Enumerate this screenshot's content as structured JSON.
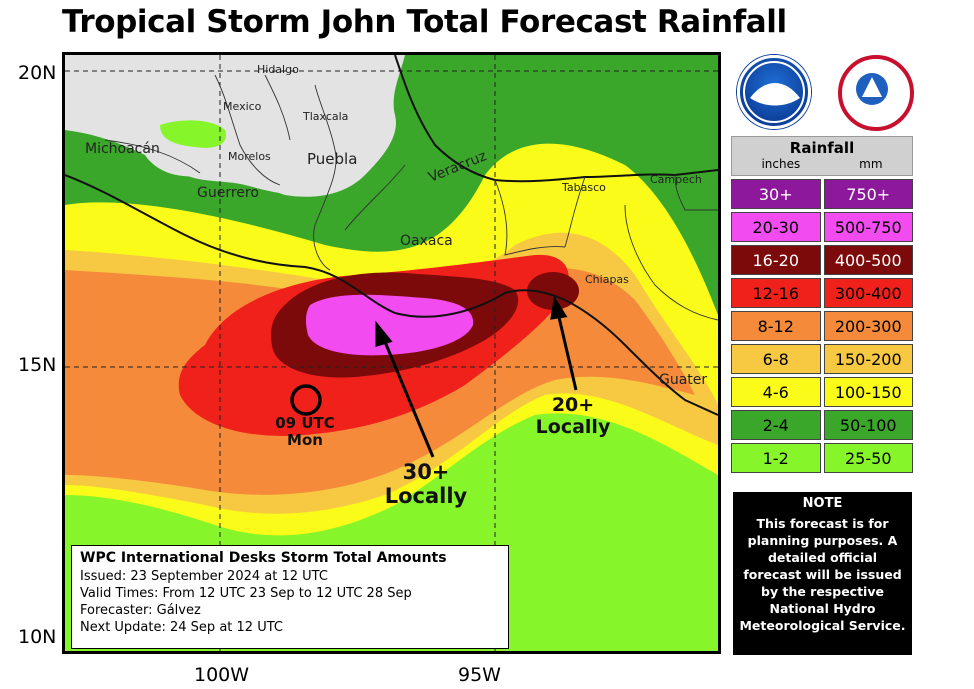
{
  "title": "Tropical Storm John Total Forecast Rainfall",
  "axes": {
    "lat_labels": [
      "20N",
      "15N",
      "10N"
    ],
    "lon_labels": [
      "100W",
      "95W"
    ]
  },
  "places": {
    "hidalgo": "Hidalgo",
    "mexico": "Mexico",
    "tlaxcala": "Tlaxcala",
    "michoacan": "Michoacán",
    "morelos": "Morelos",
    "puebla": "Puebla",
    "veracruz": "Veracruz",
    "guerrero": "Guerrero",
    "tabasco": "Tabasco",
    "campeche": "Campech",
    "oaxaca": "Oaxaca",
    "chiapas": "Chiapas",
    "guatemala": "Guater"
  },
  "annotations": {
    "center": "09 UTC\nMon",
    "max30": "30+\nLocally",
    "max20": "20+\nLocally"
  },
  "info_box": {
    "header": "WPC International Desks Storm Total Amounts",
    "issued": "Issued:  23 September 2024 at 12 UTC",
    "valid": "Valid Times:  From 12 UTC 23 Sep  to  12 UTC 28 Sep",
    "forecaster": "Forecaster: Gálvez",
    "next_update": "Next Update: 24 Sep at 12 UTC"
  },
  "logos": {
    "noaa": "noaa-logo",
    "nws": "nws-logo"
  },
  "legend": {
    "title": "Rainfall",
    "unit_inches": "inches",
    "unit_mm": "mm",
    "rows": [
      {
        "inches": "30+",
        "mm": "750+",
        "color": "#8e189c",
        "text_color": "#ffffff"
      },
      {
        "inches": "20-30",
        "mm": "500-750",
        "color": "#f24cf0",
        "text_color": "#000000"
      },
      {
        "inches": "16-20",
        "mm": "400-500",
        "color": "#7c0a0a",
        "text_color": "#ffffff"
      },
      {
        "inches": "12-16",
        "mm": "300-400",
        "color": "#f0201a",
        "text_color": "#000000"
      },
      {
        "inches": "8-12",
        "mm": "200-300",
        "color": "#f58b3a",
        "text_color": "#000000"
      },
      {
        "inches": "6-8",
        "mm": "150-200",
        "color": "#f7c842",
        "text_color": "#000000"
      },
      {
        "inches": "4-6",
        "mm": "100-150",
        "color": "#fbfb1a",
        "text_color": "#000000"
      },
      {
        "inches": "2-4",
        "mm": "50-100",
        "color": "#3aa62a",
        "text_color": "#000000"
      },
      {
        "inches": "1-2",
        "mm": "25-50",
        "color": "#86f52a",
        "text_color": "#000000"
      }
    ]
  },
  "note": {
    "title": "NOTE",
    "body": "This forecast is for planning purposes. A detailed official forecast will be issued by the respective National Hydro Meteorological Service."
  }
}
